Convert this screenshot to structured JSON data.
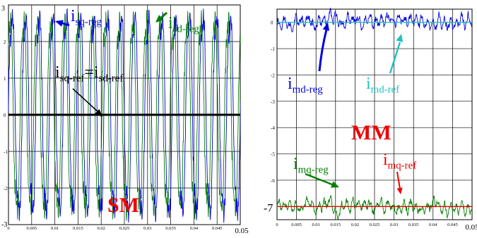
{
  "chart_data": [
    {
      "type": "line",
      "title": "",
      "xlabel": "",
      "ylabel": "",
      "xlim": [
        0,
        0.05
      ],
      "ylim": [
        -3,
        3
      ],
      "grid": true,
      "x_ticks": [
        "0",
        "0.005",
        "0.01",
        "0.015",
        "0.02",
        "0.025",
        "0.03",
        "0.035",
        "0.04",
        "0.045",
        "0.05"
      ],
      "y_ticks": [
        "-3",
        "-2",
        "-1",
        "0",
        "1",
        "2",
        "3"
      ],
      "series": [
        {
          "label_main": "i",
          "label_sub": "sq-reg",
          "color": "#0000dd",
          "waveform": "sinusoid",
          "amplitude": 2.8,
          "offset": 0.0,
          "periods_in_window": 17
        },
        {
          "label_main": "i",
          "label_sub": "sd-reg",
          "color": "#008000",
          "waveform": "sinusoid",
          "amplitude": 2.7,
          "offset": 0.0,
          "periods_in_window": 17
        },
        {
          "label_main": "i",
          "label_sub": "sq-ref",
          "label_main2": "=i",
          "label_sub2": "sd-ref",
          "color": "#000000",
          "waveform": "constant",
          "value": 0.0
        }
      ],
      "annotation": {
        "text": "SM",
        "color": "#ee0000"
      }
    },
    {
      "type": "line",
      "title": "",
      "xlabel": "",
      "ylabel": "",
      "xlim": [
        0,
        0.05
      ],
      "ylim": [
        -7.5,
        0.5
      ],
      "grid": true,
      "x_ticks": [
        "0",
        "0.005",
        "0.01",
        "0.015",
        "0.02",
        "0.025",
        "0.03",
        "0.035",
        "0.04",
        "0.045",
        "0.05"
      ],
      "y_ticks": [
        "0",
        "-1",
        "-2",
        "-3",
        "-4",
        "-5",
        "-6",
        "-7"
      ],
      "series": [
        {
          "label_main": "i",
          "label_sub": "md-reg",
          "color": "#0000dd",
          "waveform": "ripple",
          "mean": 0.0,
          "ripple": 0.3
        },
        {
          "label_main": "i",
          "label_sub": "md-ref",
          "color": "#20c0c0",
          "waveform": "constant",
          "value": 0.0
        },
        {
          "label_main": "i",
          "label_sub": "mq-reg",
          "color": "#008000",
          "waveform": "ripple",
          "mean": -7.0,
          "ripple": 0.25
        },
        {
          "label_main": "i",
          "label_sub": "mq-ref",
          "color": "#ee0000",
          "waveform": "constant",
          "value": -7.0
        }
      ],
      "annotation": {
        "text": "MM",
        "color": "#ee0000"
      }
    }
  ]
}
